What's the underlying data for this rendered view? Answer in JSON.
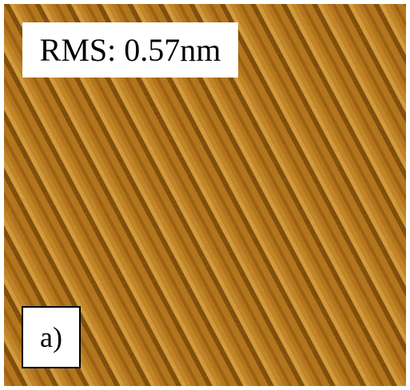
{
  "labels": {
    "rms": "RMS: 0.57nm",
    "panel": "a)"
  }
}
